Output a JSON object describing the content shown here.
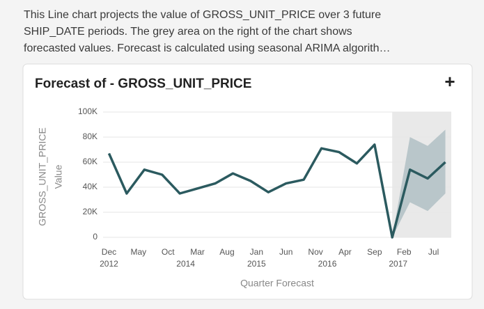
{
  "description_lines": [
    "This Line chart projects the value of GROSS_UNIT_PRICE over 3 future",
    "SHIP_DATE periods. The grey area on the right of the chart shows",
    "forecasted values. Forecast is calculated using seasonal ARIMA algorith…"
  ],
  "add_button": "+",
  "chart_data": {
    "type": "line",
    "title": "Forecast of - GROSS_UNIT_PRICE",
    "y_label": [
      "GROSS_UNIT_PRICE",
      "Value"
    ],
    "x_label": "Quarter Forecast",
    "x": [
      "2012-12",
      "2013-03",
      "2013-06",
      "2013-09",
      "2013-12",
      "2014-03",
      "2014-06",
      "2014-09",
      "2014-12",
      "2015-03",
      "2015-06",
      "2015-09",
      "2015-12",
      "2016-03",
      "2016-06",
      "2016-09",
      "2016-12",
      "2017-03",
      "2017-06",
      "2017-09"
    ],
    "values": [
      67000,
      35000,
      54000,
      50000,
      35000,
      39000,
      43000,
      51000,
      45000,
      36000,
      43000,
      46000,
      71000,
      68000,
      59000,
      74000,
      0,
      54000,
      47000,
      60000
    ],
    "forecast_upper": [
      null,
      null,
      null,
      null,
      null,
      null,
      null,
      null,
      null,
      null,
      null,
      null,
      null,
      null,
      null,
      null,
      0,
      80000,
      73000,
      86000
    ],
    "forecast_lower": [
      null,
      null,
      null,
      null,
      null,
      null,
      null,
      null,
      null,
      null,
      null,
      null,
      null,
      null,
      null,
      null,
      0,
      28000,
      21000,
      35000
    ],
    "forecast_start": "2016-12",
    "color": "#2b5a5f",
    "band_color": "#b9c6ca",
    "forecast_area_color": "#e9e9e9",
    "xlim": [
      "2012-11",
      "2017-10"
    ],
    "xticks": [
      {
        "value": "2012-12",
        "label": "Dec"
      },
      {
        "value": "2013-05",
        "label": "May"
      },
      {
        "value": "2013-10",
        "label": "Oct"
      },
      {
        "value": "2014-03",
        "label": "Mar"
      },
      {
        "value": "2014-08",
        "label": "Aug"
      },
      {
        "value": "2015-01",
        "label": "Jan"
      },
      {
        "value": "2015-06",
        "label": "Jun"
      },
      {
        "value": "2015-11",
        "label": "Nov"
      },
      {
        "value": "2016-04",
        "label": "Apr"
      },
      {
        "value": "2016-09",
        "label": "Sep"
      },
      {
        "value": "2017-02",
        "label": "Feb"
      },
      {
        "value": "2017-07",
        "label": "Jul"
      }
    ],
    "xtick_years": [
      {
        "value": "2012-12",
        "label": "2012"
      },
      {
        "value": "2014-01",
        "label": "2014"
      },
      {
        "value": "2015-01",
        "label": "2015"
      },
      {
        "value": "2016-01",
        "label": "2016"
      },
      {
        "value": "2017-01",
        "label": "2017"
      }
    ],
    "ylim": [
      0,
      100000
    ],
    "yticks": [
      0,
      {
        "value": 20000,
        "label": "20K"
      },
      {
        "value": 40000,
        "label": "40K"
      },
      {
        "value": 60000,
        "label": "60K"
      },
      {
        "value": 80000,
        "label": "80K"
      },
      {
        "value": 100000,
        "label": "100K"
      }
    ],
    "grid": true
  }
}
